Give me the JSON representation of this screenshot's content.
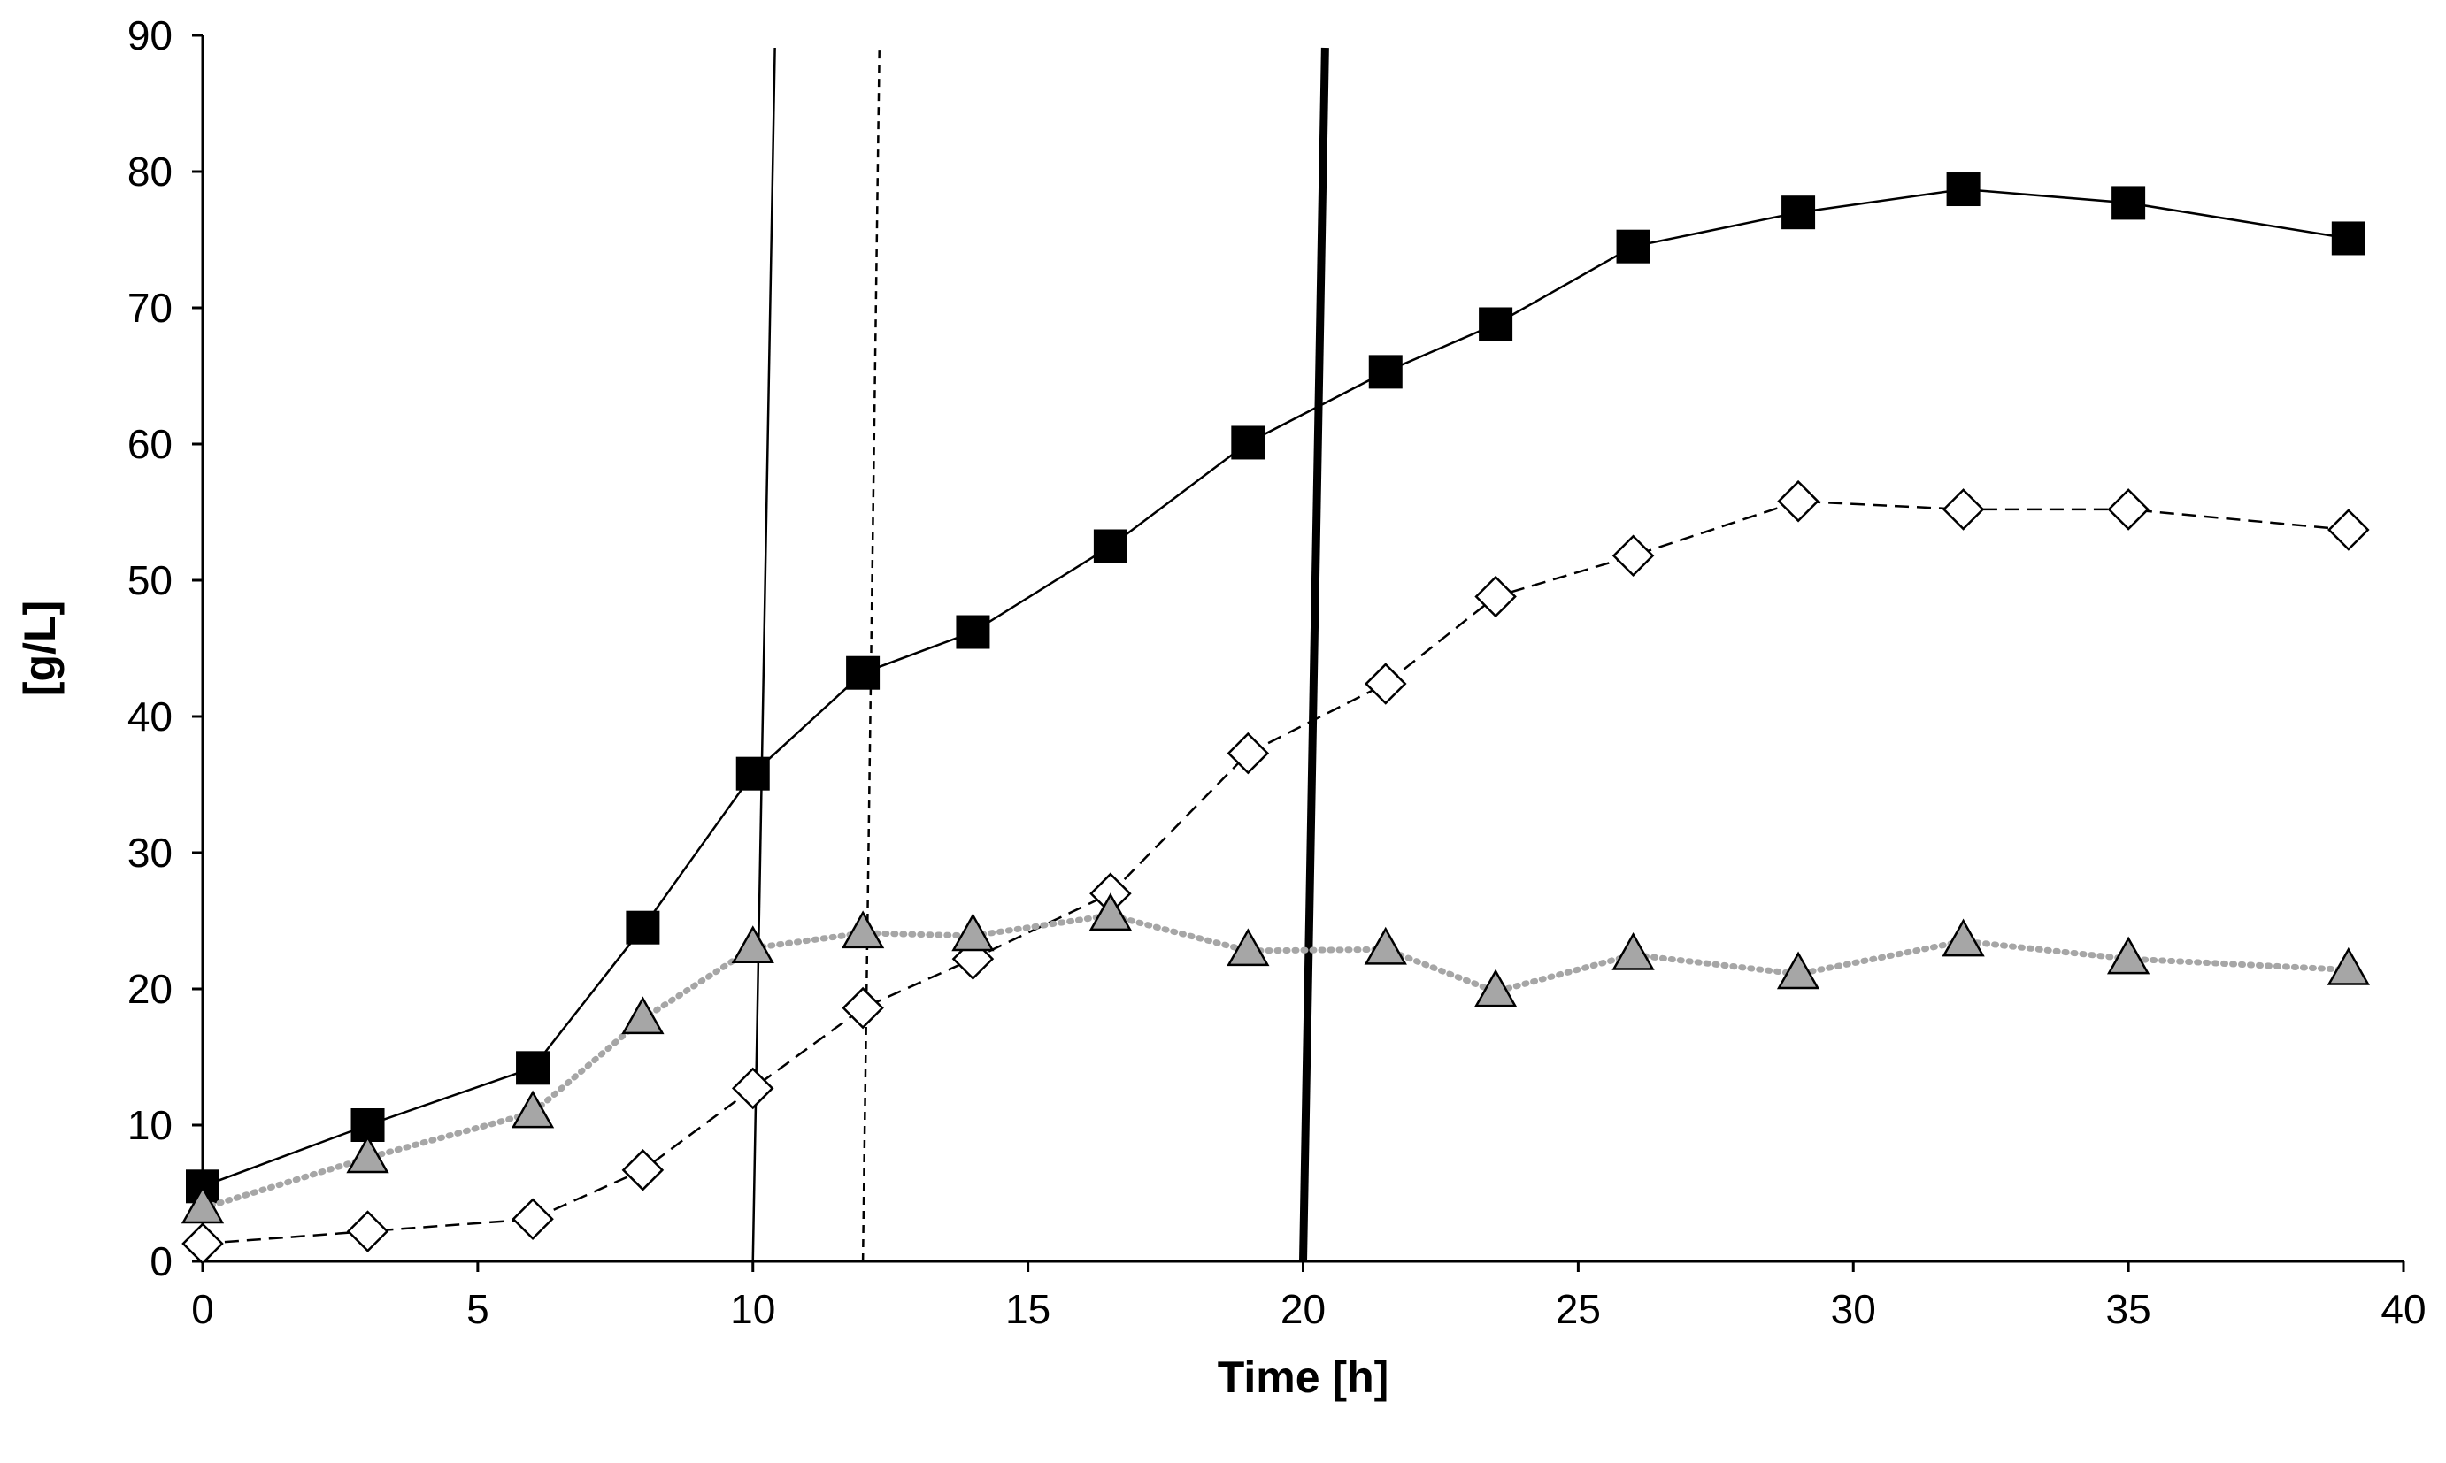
{
  "chart_data": {
    "type": "line",
    "title": "",
    "xlabel": "Time [h]",
    "ylabel": "[g/L]",
    "xlim": [
      0,
      40
    ],
    "ylim": [
      0,
      90
    ],
    "xticks": [
      0,
      5,
      10,
      15,
      20,
      25,
      30,
      35,
      40
    ],
    "yticks": [
      0,
      10,
      20,
      30,
      40,
      50,
      60,
      70,
      80,
      90
    ],
    "grid": false,
    "legend": "none",
    "series": [
      {
        "name": "filled-squares",
        "marker": "square",
        "line_style": "solid",
        "color": "#000000",
        "x": [
          0,
          3,
          6,
          8,
          10,
          12,
          14,
          16.5,
          19,
          21.5,
          23.5,
          26,
          29,
          32,
          35,
          39
        ],
        "values": [
          5.5,
          10,
          14.2,
          24.5,
          35.8,
          43.2,
          46.2,
          52.5,
          60.1,
          65.3,
          68.8,
          74.5,
          77,
          78.7,
          77.7,
          75.1
        ]
      },
      {
        "name": "open-diamonds",
        "marker": "diamond",
        "line_style": "dashed",
        "color": "#000000",
        "x": [
          0,
          3,
          6,
          8,
          10,
          12,
          14,
          16.5,
          19,
          21.5,
          23.5,
          26,
          29,
          32,
          35,
          39
        ],
        "values": [
          1.3,
          2.2,
          3.1,
          6.7,
          12.7,
          18.6,
          22.2,
          27,
          37.3,
          42.4,
          48.8,
          51.8,
          55.8,
          55.2,
          55.2,
          53.7
        ]
      },
      {
        "name": "gray-triangles",
        "marker": "triangle",
        "line_style": "dotted",
        "color": "#a6a6a6",
        "x": [
          0,
          3,
          6,
          8,
          10,
          12,
          14,
          16.5,
          19,
          21.5,
          23.5,
          26,
          29,
          32,
          35,
          39
        ],
        "values": [
          3.9,
          7.6,
          10.9,
          17.8,
          23,
          24.1,
          23.9,
          25.4,
          22.8,
          22.9,
          19.8,
          22.5,
          21.1,
          23.5,
          22.2,
          21.4
        ]
      }
    ],
    "reference_lines": [
      {
        "name": "thin-solid-line",
        "style": "solid",
        "weight": "thin",
        "x_bottom": 10,
        "x_top": 10.4
      },
      {
        "name": "dashed-line",
        "style": "dashed",
        "weight": "thin",
        "x_bottom": 12,
        "x_top": 12.3
      },
      {
        "name": "thick-solid-line",
        "style": "solid",
        "weight": "thick",
        "x_bottom": 20,
        "x_top": 20.4
      }
    ]
  }
}
